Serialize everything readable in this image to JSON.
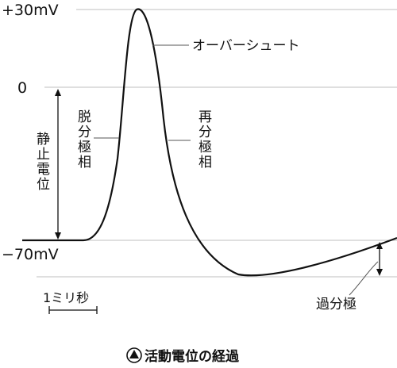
{
  "diagram": {
    "labels": {
      "plus30": "+30mV",
      "zero": "0",
      "minus70": "−70mV",
      "overshoot": "オーバーシュート",
      "resting": "静止電位",
      "depolarization": "脱分極相",
      "repolarization": "再分極相",
      "hyperpolarization": "過分極",
      "scale": "1ミリ秒"
    },
    "caption": {
      "symbol": "▲",
      "text": "活動電位の経過"
    }
  }
}
